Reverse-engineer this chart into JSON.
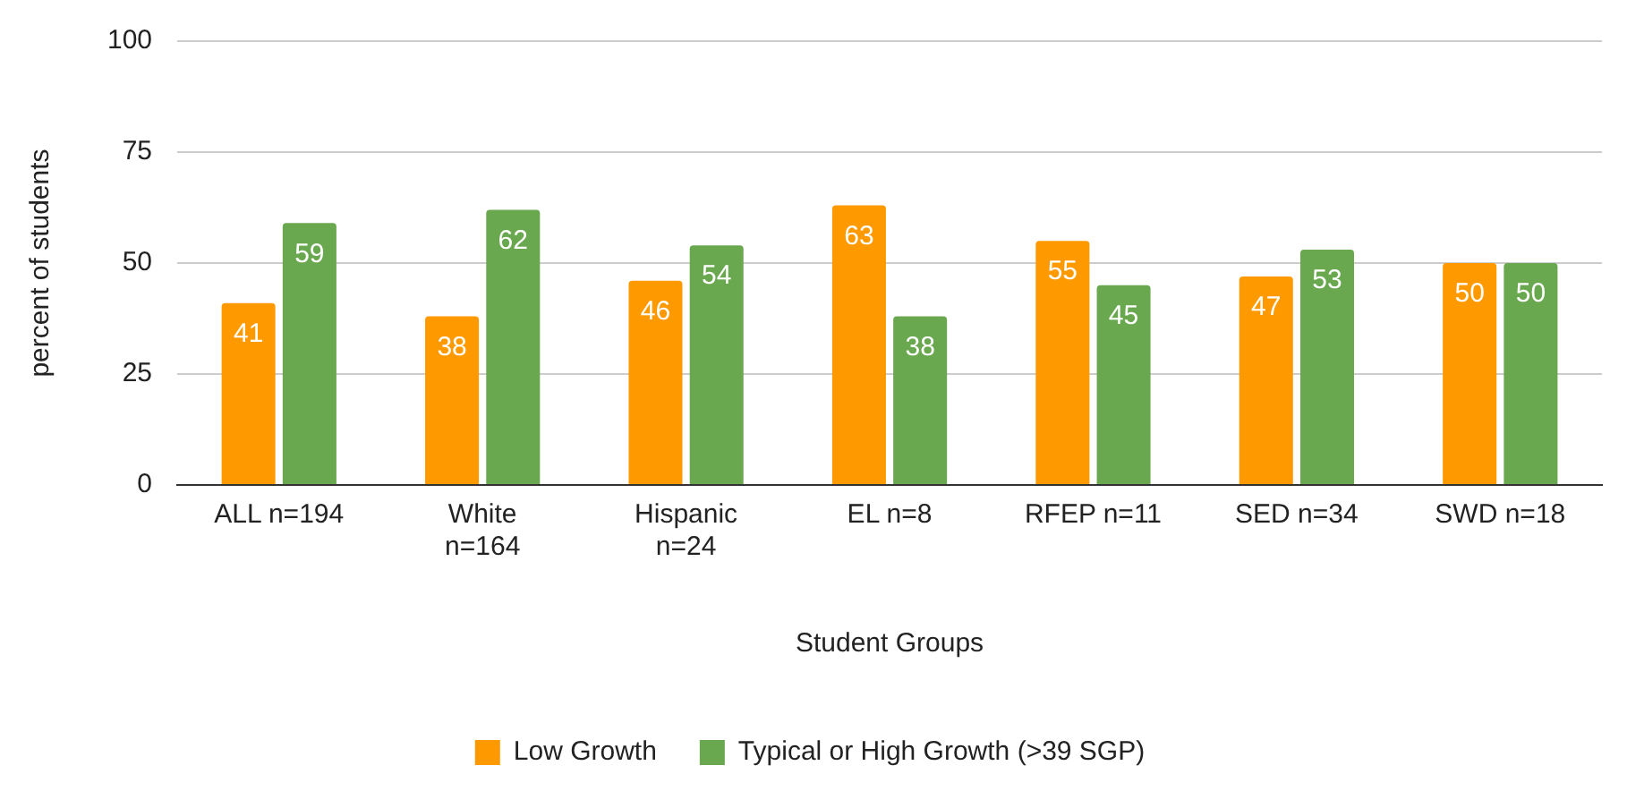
{
  "chart_data": {
    "type": "bar",
    "xlabel": "Student Groups",
    "ylabel": "percent of students",
    "categories": [
      "ALL n=194",
      "White n=164",
      "Hispanic n=24",
      "EL n=8",
      "RFEP n=11",
      "SED n=34",
      "SWD n=18"
    ],
    "series": [
      {
        "name": "Low Growth",
        "color": "#ff9900",
        "values": [
          41,
          38,
          46,
          63,
          55,
          47,
          50
        ]
      },
      {
        "name": "Typical or High Growth (>39 SGP)",
        "color": "#6aa84f",
        "values": [
          59,
          62,
          54,
          38,
          45,
          53,
          50
        ]
      }
    ],
    "ylim": [
      0,
      100
    ],
    "yticks": [
      0,
      25,
      50,
      75,
      100
    ],
    "grid": "y",
    "legend": "bottom",
    "data_labels": true
  }
}
